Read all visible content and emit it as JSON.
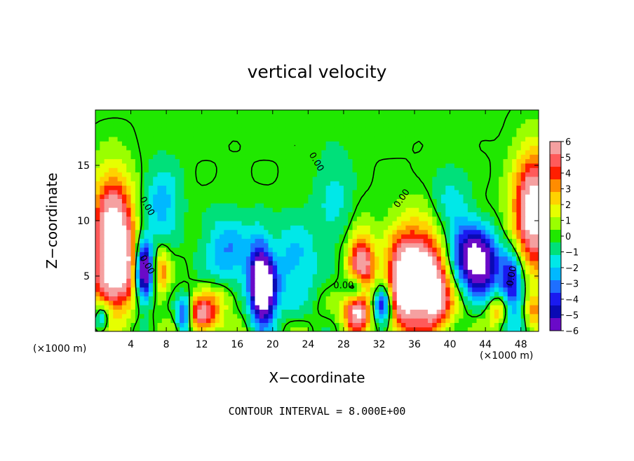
{
  "chart_data": {
    "type": "heatmap",
    "title": "vertical velocity",
    "xlabel": "X−coordinate",
    "ylabel": "Z−coordinate",
    "x_unit": "(×1000 m)",
    "xlim": [
      0,
      50
    ],
    "ylim": [
      0,
      20
    ],
    "x_ticks": [
      4,
      8,
      12,
      16,
      20,
      24,
      28,
      32,
      36,
      40,
      44,
      48
    ],
    "y_ticks": [
      5,
      10,
      15
    ],
    "colorbar": {
      "ticks": [
        "6",
        "5",
        "4",
        "3",
        "2",
        "1",
        "0",
        "−1",
        "−2",
        "−3",
        "−4",
        "−5",
        "−6"
      ],
      "colors": [
        "#f5a0a0",
        "#ff5a5a",
        "#ff1e00",
        "#ff8c00",
        "#ffd200",
        "#e6ff00",
        "#9aff00",
        "#20e800",
        "#00e07a",
        "#00e8e8",
        "#00b8ff",
        "#1e6fff",
        "#1a1af0",
        "#0a0ab4",
        "#6a0ac8"
      ]
    },
    "features": [
      {
        "x": 2,
        "z": 9,
        "w": 8,
        "sx": 1.6,
        "sz": 3.5
      },
      {
        "x": 49.5,
        "z": 11,
        "w": 8,
        "sx": 1.6,
        "sz": 3.5
      },
      {
        "x": 1.5,
        "z": 4,
        "w": 3.5,
        "sx": 1.5,
        "sz": 2
      },
      {
        "x": 36.5,
        "z": 5,
        "w": 8,
        "sx": 2,
        "sz": 3
      },
      {
        "x": 34.5,
        "z": 4,
        "w": 4,
        "sx": 1.2,
        "sz": 3
      },
      {
        "x": 38.5,
        "z": 3,
        "w": 4,
        "sx": 1.2,
        "sz": 2
      },
      {
        "x": 30,
        "z": 6,
        "w": 6.5,
        "sx": 1,
        "sz": 2
      },
      {
        "x": 29.5,
        "z": 1.8,
        "w": 6.5,
        "sx": 1,
        "sz": 1.2
      },
      {
        "x": 12,
        "z": 1.5,
        "w": 5,
        "sx": 1.2,
        "sz": 1.1
      },
      {
        "x": 43.5,
        "z": 6,
        "w": -7,
        "sx": 1.5,
        "sz": 2
      },
      {
        "x": 41.5,
        "z": 7.5,
        "w": -3.5,
        "sx": 1.5,
        "sz": 2
      },
      {
        "x": 47,
        "z": 4,
        "w": -5,
        "sx": 0.9,
        "sz": 2.5
      },
      {
        "x": 19,
        "z": 3.5,
        "w": -8,
        "sx": 1,
        "sz": 2
      },
      {
        "x": 18.5,
        "z": 5.5,
        "w": -3.5,
        "sx": 0.8,
        "sz": 2.5
      },
      {
        "x": 5.5,
        "z": 5.5,
        "w": -7,
        "sx": 0.7,
        "sz": 2
      },
      {
        "x": 32.5,
        "z": 2.5,
        "w": -6,
        "sx": 0.8,
        "sz": 1.2
      },
      {
        "x": 10,
        "z": 1.5,
        "w": -5,
        "sx": 0.6,
        "sz": 1.2
      },
      {
        "x": 0.8,
        "z": 1.3,
        "w": -3.5,
        "sx": 0.6,
        "sz": 1
      },
      {
        "x": 29.5,
        "z": 4,
        "w": -4.5,
        "sx": 0.8,
        "sz": 1
      },
      {
        "x": 7.5,
        "z": 11.5,
        "w": -2.5,
        "sx": 1.5,
        "sz": 2.5
      },
      {
        "x": 15,
        "z": 7,
        "w": -3,
        "sx": 2,
        "sz": 2.5
      },
      {
        "x": 22.5,
        "z": 6,
        "w": -2.5,
        "sx": 2,
        "sz": 3
      },
      {
        "x": 14,
        "z": 3,
        "w": 2,
        "sx": 1.5,
        "sz": 1.2
      },
      {
        "x": 7.5,
        "z": 5.5,
        "w": 3,
        "sx": 0.6,
        "sz": 1.5
      },
      {
        "x": 3.5,
        "z": 6,
        "w": 3,
        "sx": 0.7,
        "sz": 2
      },
      {
        "x": 40,
        "z": 12,
        "w": -1.5,
        "sx": 1.5,
        "sz": 2
      },
      {
        "x": 27,
        "z": 12,
        "w": -1.5,
        "sx": 1.5,
        "sz": 3
      },
      {
        "x": 45.5,
        "z": 2,
        "w": 3,
        "sx": 1,
        "sz": 1
      },
      {
        "x": 49.5,
        "z": 2,
        "w": 3,
        "sx": 0.6,
        "sz": 1
      }
    ],
    "contour_labels": [
      {
        "text": "0.00",
        "x": 5.8,
        "z": 11.3,
        "angle": 60
      },
      {
        "text": "0.00",
        "x": 5.8,
        "z": 6.0,
        "angle": 60
      },
      {
        "text": "0.00",
        "x": 24.9,
        "z": 15.3,
        "angle": 60
      },
      {
        "text": "0.00",
        "x": 34.6,
        "z": 12.0,
        "angle": -55
      },
      {
        "text": "0.00",
        "x": 28.0,
        "z": 4.1,
        "angle": 0
      },
      {
        "text": "0.00",
        "x": 47.0,
        "z": 5.0,
        "angle": -80
      }
    ]
  },
  "footer": "CONTOUR INTERVAL = 8.000E+00"
}
